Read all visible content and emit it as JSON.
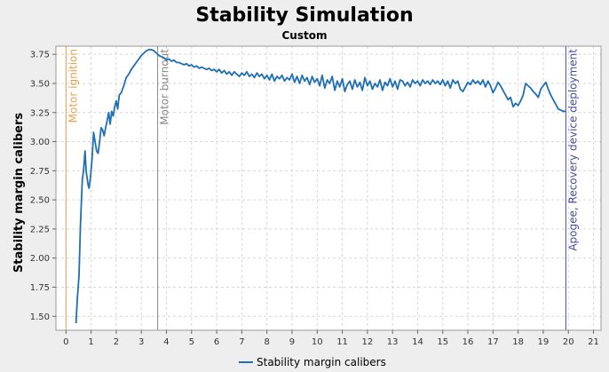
{
  "chart_data": {
    "type": "line",
    "title": "Stability Simulation",
    "subtitle": "Custom",
    "xlabel": "",
    "ylabel": "Stability margin calibers",
    "xlim": [
      -0.4,
      21.3
    ],
    "ylim": [
      1.38,
      3.82
    ],
    "x_ticks": [
      0,
      1,
      2,
      3,
      4,
      5,
      6,
      7,
      8,
      9,
      10,
      11,
      12,
      13,
      14,
      15,
      16,
      17,
      18,
      19,
      20,
      21
    ],
    "y_ticks": [
      1.5,
      1.75,
      2.0,
      2.25,
      2.5,
      2.75,
      3.0,
      3.25,
      3.5,
      3.75
    ],
    "grid": true,
    "legend": {
      "position": "bottom-center",
      "entries": [
        "Stability margin calibers"
      ]
    },
    "series": [
      {
        "name": "Stability margin calibers",
        "color": "#1f6fb4",
        "points": [
          [
            0.4,
            1.44
          ],
          [
            0.45,
            1.65
          ],
          [
            0.52,
            1.85
          ],
          [
            0.58,
            2.3
          ],
          [
            0.65,
            2.67
          ],
          [
            0.7,
            2.75
          ],
          [
            0.76,
            2.92
          ],
          [
            0.8,
            2.75
          ],
          [
            0.88,
            2.63
          ],
          [
            0.92,
            2.6
          ],
          [
            0.98,
            2.7
          ],
          [
            1.04,
            2.85
          ],
          [
            1.1,
            3.08
          ],
          [
            1.16,
            3.0
          ],
          [
            1.22,
            2.92
          ],
          [
            1.28,
            2.9
          ],
          [
            1.34,
            3.0
          ],
          [
            1.4,
            3.12
          ],
          [
            1.46,
            3.1
          ],
          [
            1.52,
            3.05
          ],
          [
            1.58,
            3.12
          ],
          [
            1.64,
            3.18
          ],
          [
            1.7,
            3.25
          ],
          [
            1.76,
            3.15
          ],
          [
            1.82,
            3.26
          ],
          [
            1.88,
            3.22
          ],
          [
            1.94,
            3.3
          ],
          [
            2.0,
            3.35
          ],
          [
            2.06,
            3.28
          ],
          [
            2.12,
            3.4
          ],
          [
            2.2,
            3.42
          ],
          [
            2.3,
            3.48
          ],
          [
            2.4,
            3.55
          ],
          [
            2.5,
            3.58
          ],
          [
            2.6,
            3.62
          ],
          [
            2.7,
            3.65
          ],
          [
            2.8,
            3.68
          ],
          [
            2.9,
            3.71
          ],
          [
            3.0,
            3.74
          ],
          [
            3.1,
            3.76
          ],
          [
            3.2,
            3.78
          ],
          [
            3.3,
            3.79
          ],
          [
            3.4,
            3.79
          ],
          [
            3.5,
            3.78
          ],
          [
            3.6,
            3.76
          ],
          [
            3.7,
            3.74
          ],
          [
            3.8,
            3.73
          ],
          [
            3.9,
            3.72
          ],
          [
            4.0,
            3.7
          ],
          [
            4.1,
            3.71
          ],
          [
            4.2,
            3.69
          ],
          [
            4.3,
            3.7
          ],
          [
            4.4,
            3.68
          ],
          [
            4.5,
            3.68
          ],
          [
            4.6,
            3.67
          ],
          [
            4.7,
            3.66
          ],
          [
            4.8,
            3.67
          ],
          [
            4.9,
            3.65
          ],
          [
            5.0,
            3.66
          ],
          [
            5.1,
            3.64
          ],
          [
            5.2,
            3.65
          ],
          [
            5.3,
            3.63
          ],
          [
            5.4,
            3.64
          ],
          [
            5.5,
            3.63
          ],
          [
            5.6,
            3.62
          ],
          [
            5.7,
            3.63
          ],
          [
            5.8,
            3.61
          ],
          [
            5.9,
            3.62
          ],
          [
            6.0,
            3.6
          ],
          [
            6.1,
            3.62
          ],
          [
            6.2,
            3.59
          ],
          [
            6.3,
            3.61
          ],
          [
            6.4,
            3.58
          ],
          [
            6.5,
            3.6
          ],
          [
            6.6,
            3.57
          ],
          [
            6.7,
            3.6
          ],
          [
            6.8,
            3.58
          ],
          [
            6.9,
            3.56
          ],
          [
            7.0,
            3.59
          ],
          [
            7.1,
            3.57
          ],
          [
            7.2,
            3.6
          ],
          [
            7.3,
            3.56
          ],
          [
            7.4,
            3.58
          ],
          [
            7.5,
            3.55
          ],
          [
            7.6,
            3.59
          ],
          [
            7.7,
            3.56
          ],
          [
            7.8,
            3.58
          ],
          [
            7.9,
            3.54
          ],
          [
            8.0,
            3.57
          ],
          [
            8.1,
            3.53
          ],
          [
            8.2,
            3.58
          ],
          [
            8.3,
            3.52
          ],
          [
            8.4,
            3.56
          ],
          [
            8.5,
            3.54
          ],
          [
            8.6,
            3.57
          ],
          [
            8.7,
            3.52
          ],
          [
            8.8,
            3.55
          ],
          [
            8.9,
            3.53
          ],
          [
            9.0,
            3.58
          ],
          [
            9.1,
            3.51
          ],
          [
            9.2,
            3.56
          ],
          [
            9.3,
            3.5
          ],
          [
            9.4,
            3.57
          ],
          [
            9.5,
            3.52
          ],
          [
            9.6,
            3.55
          ],
          [
            9.7,
            3.49
          ],
          [
            9.8,
            3.56
          ],
          [
            9.9,
            3.51
          ],
          [
            10.0,
            3.54
          ],
          [
            10.1,
            3.48
          ],
          [
            10.2,
            3.57
          ],
          [
            10.3,
            3.46
          ],
          [
            10.4,
            3.53
          ],
          [
            10.5,
            3.5
          ],
          [
            10.6,
            3.56
          ],
          [
            10.7,
            3.44
          ],
          [
            10.8,
            3.52
          ],
          [
            10.9,
            3.47
          ],
          [
            11.0,
            3.54
          ],
          [
            11.1,
            3.43
          ],
          [
            11.2,
            3.49
          ],
          [
            11.3,
            3.52
          ],
          [
            11.4,
            3.45
          ],
          [
            11.5,
            3.53
          ],
          [
            11.6,
            3.47
          ],
          [
            11.7,
            3.51
          ],
          [
            11.8,
            3.44
          ],
          [
            11.9,
            3.55
          ],
          [
            12.0,
            3.48
          ],
          [
            12.1,
            3.52
          ],
          [
            12.2,
            3.45
          ],
          [
            12.3,
            3.5
          ],
          [
            12.4,
            3.47
          ],
          [
            12.5,
            3.53
          ],
          [
            12.6,
            3.44
          ],
          [
            12.7,
            3.51
          ],
          [
            12.8,
            3.48
          ],
          [
            12.9,
            3.54
          ],
          [
            13.0,
            3.47
          ],
          [
            13.1,
            3.52
          ],
          [
            13.2,
            3.45
          ],
          [
            13.3,
            3.53
          ],
          [
            13.4,
            3.52
          ],
          [
            13.5,
            3.48
          ],
          [
            13.6,
            3.51
          ],
          [
            13.7,
            3.47
          ],
          [
            13.8,
            3.53
          ],
          [
            13.9,
            3.5
          ],
          [
            14.0,
            3.52
          ],
          [
            14.1,
            3.48
          ],
          [
            14.2,
            3.53
          ],
          [
            14.3,
            3.5
          ],
          [
            14.4,
            3.52
          ],
          [
            14.5,
            3.49
          ],
          [
            14.6,
            3.53
          ],
          [
            14.7,
            3.5
          ],
          [
            14.8,
            3.52
          ],
          [
            14.9,
            3.49
          ],
          [
            15.0,
            3.53
          ],
          [
            15.1,
            3.48
          ],
          [
            15.2,
            3.52
          ],
          [
            15.3,
            3.46
          ],
          [
            15.4,
            3.53
          ],
          [
            15.5,
            3.5
          ],
          [
            15.6,
            3.52
          ],
          [
            15.7,
            3.45
          ],
          [
            15.8,
            3.43
          ],
          [
            15.9,
            3.47
          ],
          [
            16.0,
            3.51
          ],
          [
            16.1,
            3.49
          ],
          [
            16.2,
            3.53
          ],
          [
            16.3,
            3.5
          ],
          [
            16.4,
            3.52
          ],
          [
            16.5,
            3.49
          ],
          [
            16.6,
            3.53
          ],
          [
            16.7,
            3.47
          ],
          [
            16.8,
            3.52
          ],
          [
            16.9,
            3.48
          ],
          [
            17.0,
            3.42
          ],
          [
            17.1,
            3.46
          ],
          [
            17.2,
            3.51
          ],
          [
            17.3,
            3.48
          ],
          [
            17.4,
            3.44
          ],
          [
            17.5,
            3.4
          ],
          [
            17.6,
            3.36
          ],
          [
            17.7,
            3.38
          ],
          [
            17.8,
            3.3
          ],
          [
            17.9,
            3.33
          ],
          [
            18.0,
            3.31
          ],
          [
            18.1,
            3.35
          ],
          [
            18.2,
            3.4
          ],
          [
            18.3,
            3.5
          ],
          [
            18.4,
            3.48
          ],
          [
            18.5,
            3.46
          ],
          [
            18.6,
            3.43
          ],
          [
            18.7,
            3.41
          ],
          [
            18.8,
            3.38
          ],
          [
            18.9,
            3.45
          ],
          [
            19.0,
            3.48
          ],
          [
            19.1,
            3.51
          ],
          [
            19.2,
            3.45
          ],
          [
            19.3,
            3.4
          ],
          [
            19.4,
            3.36
          ],
          [
            19.5,
            3.32
          ],
          [
            19.6,
            3.28
          ],
          [
            19.7,
            3.27
          ],
          [
            19.8,
            3.26
          ],
          [
            19.9,
            3.26
          ]
        ]
      }
    ],
    "events": [
      {
        "label": "Motor ignition",
        "x": 0.0,
        "color": "#e8a050"
      },
      {
        "label": "Motor burnout",
        "x": 3.65,
        "color": "#888888"
      },
      {
        "label": "Apogee, Recovery device deployment",
        "x": 19.9,
        "color": "#4a4aa8"
      }
    ]
  }
}
